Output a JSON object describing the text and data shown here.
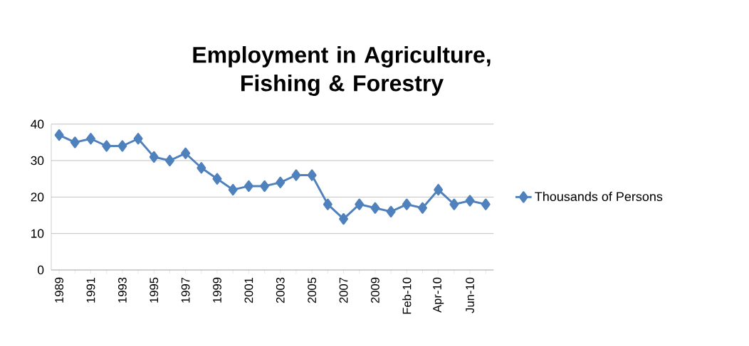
{
  "chart_data": {
    "type": "line",
    "title": "Employment in Agriculture,\nFishing & Forestry",
    "categories": [
      "1989",
      null,
      "1991",
      null,
      "1993",
      null,
      "1995",
      null,
      "1997",
      null,
      "1999",
      null,
      "2001",
      null,
      "2003",
      null,
      "2005",
      null,
      "2007",
      null,
      "2009",
      null,
      "Feb-10",
      null,
      "Apr-10",
      null,
      "Jun-10",
      null
    ],
    "series": [
      {
        "name": "Thousands of Persons",
        "color": "#4f81bd",
        "values": [
          37,
          35,
          36,
          34,
          34,
          36,
          31,
          30,
          32,
          28,
          25,
          22,
          23,
          23,
          24,
          26,
          26,
          18,
          14,
          18,
          17,
          16,
          18,
          17,
          22,
          18,
          19,
          18
        ]
      }
    ],
    "ylim": [
      0,
      40
    ],
    "yticks": [
      0,
      10,
      20,
      30,
      40
    ],
    "grid": "y",
    "legend": "right",
    "marker": "diamond",
    "line_style": "solid"
  }
}
